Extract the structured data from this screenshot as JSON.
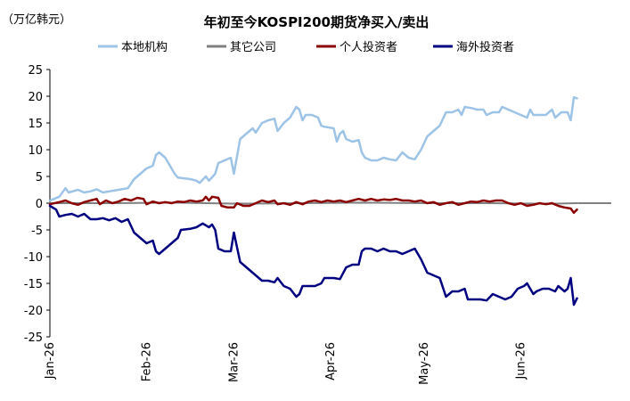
{
  "chart_data": {
    "type": "line",
    "title": "年初至今KOSPI200期货净买入/卖出",
    "unit_label": "（万亿韩元）",
    "ylim": [
      -25,
      25
    ],
    "yticks": [
      "25",
      "20",
      "15",
      "10",
      "5",
      "0",
      "-5",
      "-10",
      "-15",
      "-20",
      "-25"
    ],
    "xlim": [
      0,
      180
    ],
    "xticks": [
      {
        "label": "Jan-26",
        "x": 0
      },
      {
        "label": "Feb-26",
        "x": 31
      },
      {
        "label": "Mar-26",
        "x": 59
      },
      {
        "label": "Apr-26",
        "x": 90
      },
      {
        "label": "May-26",
        "x": 120
      },
      {
        "label": "Jun-26",
        "x": 151
      }
    ],
    "legend_position": "top",
    "grid": false,
    "series": [
      {
        "name": "本地机构",
        "color": "#9dc3e6",
        "points": [
          [
            0,
            0.5
          ],
          [
            3,
            1.2
          ],
          [
            5,
            2.8
          ],
          [
            6,
            2.0
          ],
          [
            9,
            2.5
          ],
          [
            11,
            2.0
          ],
          [
            13,
            2.2
          ],
          [
            15,
            2.6
          ],
          [
            17,
            2.0
          ],
          [
            20,
            2.3
          ],
          [
            22,
            2.5
          ],
          [
            25,
            2.8
          ],
          [
            27,
            4.5
          ],
          [
            29,
            5.5
          ],
          [
            31,
            6.5
          ],
          [
            33,
            7.0
          ],
          [
            34,
            9.0
          ],
          [
            35,
            9.5
          ],
          [
            37,
            8.5
          ],
          [
            39,
            6.5
          ],
          [
            40,
            5.5
          ],
          [
            41,
            4.8
          ],
          [
            45,
            4.5
          ],
          [
            47,
            4.2
          ],
          [
            48,
            3.8
          ],
          [
            50,
            5.0
          ],
          [
            51,
            4.2
          ],
          [
            53,
            5.5
          ],
          [
            54,
            7.5
          ],
          [
            56,
            8.0
          ],
          [
            58,
            8.5
          ],
          [
            59,
            5.5
          ],
          [
            61,
            12.0
          ],
          [
            63,
            13.0
          ],
          [
            65,
            14.0
          ],
          [
            66,
            13.2
          ],
          [
            68,
            15.0
          ],
          [
            70,
            15.5
          ],
          [
            72,
            15.8
          ],
          [
            73,
            13.5
          ],
          [
            75,
            15.0
          ],
          [
            77,
            16.0
          ],
          [
            79,
            18.0
          ],
          [
            80,
            17.5
          ],
          [
            81,
            15.5
          ],
          [
            82,
            16.5
          ],
          [
            84,
            16.5
          ],
          [
            86,
            16.0
          ],
          [
            87,
            14.5
          ],
          [
            88,
            14.3
          ],
          [
            91,
            14.0
          ],
          [
            92,
            11.5
          ],
          [
            93,
            13.0
          ],
          [
            94,
            13.5
          ],
          [
            95,
            12.0
          ],
          [
            97,
            11.5
          ],
          [
            99,
            11.8
          ],
          [
            100,
            9.5
          ],
          [
            101,
            8.5
          ],
          [
            103,
            8.0
          ],
          [
            105,
            8.0
          ],
          [
            107,
            8.5
          ],
          [
            109,
            8.2
          ],
          [
            111,
            8.0
          ],
          [
            113,
            9.5
          ],
          [
            115,
            8.5
          ],
          [
            117,
            8.2
          ],
          [
            119,
            10.0
          ],
          [
            121,
            12.5
          ],
          [
            123,
            13.5
          ],
          [
            125,
            14.5
          ],
          [
            127,
            17.0
          ],
          [
            129,
            17.0
          ],
          [
            131,
            17.5
          ],
          [
            132,
            16.5
          ],
          [
            133,
            18.0
          ],
          [
            135,
            17.8
          ],
          [
            137,
            17.5
          ],
          [
            139,
            17.5
          ],
          [
            140,
            16.5
          ],
          [
            142,
            17.0
          ],
          [
            144,
            17.0
          ],
          [
            145,
            18.0
          ],
          [
            147,
            17.5
          ],
          [
            149,
            17.0
          ],
          [
            151,
            16.5
          ],
          [
            153,
            16.0
          ],
          [
            154,
            17.5
          ],
          [
            155,
            16.5
          ],
          [
            157,
            16.5
          ],
          [
            159,
            16.5
          ],
          [
            161,
            17.5
          ],
          [
            162,
            16.0
          ],
          [
            164,
            17.0
          ],
          [
            166,
            17.0
          ],
          [
            167,
            15.5
          ],
          [
            168,
            19.8
          ],
          [
            169,
            19.6
          ]
        ]
      },
      {
        "name": "其它公司",
        "color": "#808080",
        "points": [
          [
            0,
            0.0
          ],
          [
            20,
            0.0
          ],
          [
            40,
            0.1
          ],
          [
            50,
            0.0
          ],
          [
            60,
            -0.1
          ],
          [
            80,
            0.0
          ],
          [
            100,
            0.1
          ],
          [
            120,
            0.0
          ],
          [
            140,
            0.0
          ],
          [
            160,
            -0.1
          ],
          [
            169,
            0.0
          ]
        ]
      },
      {
        "name": "个人投资者",
        "color": "#8b0000",
        "points": [
          [
            0,
            -0.2
          ],
          [
            3,
            0.2
          ],
          [
            5,
            0.5
          ],
          [
            7,
            0.0
          ],
          [
            9,
            -0.3
          ],
          [
            11,
            0.2
          ],
          [
            13,
            0.5
          ],
          [
            15,
            0.8
          ],
          [
            16,
            -0.2
          ],
          [
            18,
            0.5
          ],
          [
            20,
            0.0
          ],
          [
            22,
            0.3
          ],
          [
            24,
            0.8
          ],
          [
            26,
            0.5
          ],
          [
            28,
            1.0
          ],
          [
            30,
            0.8
          ],
          [
            31,
            -0.2
          ],
          [
            33,
            0.3
          ],
          [
            35,
            0.0
          ],
          [
            37,
            0.2
          ],
          [
            39,
            0.0
          ],
          [
            41,
            0.3
          ],
          [
            43,
            0.2
          ],
          [
            45,
            0.5
          ],
          [
            47,
            0.3
          ],
          [
            49,
            0.5
          ],
          [
            50,
            1.2
          ],
          [
            51,
            0.5
          ],
          [
            52,
            1.2
          ],
          [
            54,
            1.0
          ],
          [
            55,
            -0.5
          ],
          [
            57,
            -0.8
          ],
          [
            59,
            -0.8
          ],
          [
            60,
            0.0
          ],
          [
            62,
            -0.5
          ],
          [
            64,
            -0.5
          ],
          [
            66,
            0.0
          ],
          [
            68,
            0.5
          ],
          [
            70,
            0.2
          ],
          [
            72,
            0.5
          ],
          [
            73,
            -0.2
          ],
          [
            75,
            0.0
          ],
          [
            77,
            -0.3
          ],
          [
            79,
            0.2
          ],
          [
            81,
            -0.2
          ],
          [
            83,
            0.3
          ],
          [
            85,
            0.5
          ],
          [
            87,
            0.2
          ],
          [
            89,
            0.5
          ],
          [
            91,
            0.3
          ],
          [
            93,
            0.5
          ],
          [
            95,
            0.2
          ],
          [
            97,
            0.5
          ],
          [
            99,
            0.8
          ],
          [
            101,
            0.5
          ],
          [
            103,
            0.8
          ],
          [
            105,
            0.5
          ],
          [
            107,
            0.7
          ],
          [
            109,
            0.6
          ],
          [
            111,
            0.8
          ],
          [
            113,
            0.5
          ],
          [
            115,
            0.5
          ],
          [
            117,
            0.3
          ],
          [
            119,
            0.5
          ],
          [
            121,
            0.0
          ],
          [
            123,
            0.2
          ],
          [
            125,
            -0.3
          ],
          [
            127,
            0.0
          ],
          [
            129,
            0.2
          ],
          [
            131,
            -0.3
          ],
          [
            133,
            0.0
          ],
          [
            135,
            0.3
          ],
          [
            137,
            0.2
          ],
          [
            139,
            0.5
          ],
          [
            141,
            0.3
          ],
          [
            143,
            0.5
          ],
          [
            145,
            0.5
          ],
          [
            147,
            0.0
          ],
          [
            149,
            -0.3
          ],
          [
            151,
            0.0
          ],
          [
            153,
            -0.5
          ],
          [
            155,
            -0.3
          ],
          [
            157,
            0.0
          ],
          [
            159,
            -0.2
          ],
          [
            161,
            0.0
          ],
          [
            163,
            -0.5
          ],
          [
            165,
            -0.8
          ],
          [
            167,
            -1.0
          ],
          [
            168,
            -1.8
          ],
          [
            169,
            -1.2
          ]
        ]
      },
      {
        "name": "海外投资者",
        "color": "#000080",
        "points": [
          [
            0,
            -0.5
          ],
          [
            2,
            -1.2
          ],
          [
            3,
            -2.5
          ],
          [
            5,
            -2.2
          ],
          [
            7,
            -2.0
          ],
          [
            9,
            -2.5
          ],
          [
            11,
            -2.0
          ],
          [
            13,
            -3.0
          ],
          [
            15,
            -3.0
          ],
          [
            17,
            -2.8
          ],
          [
            19,
            -3.2
          ],
          [
            21,
            -2.8
          ],
          [
            23,
            -3.5
          ],
          [
            25,
            -3.0
          ],
          [
            27,
            -5.5
          ],
          [
            29,
            -6.5
          ],
          [
            31,
            -7.5
          ],
          [
            33,
            -7.0
          ],
          [
            34,
            -9.0
          ],
          [
            35,
            -9.5
          ],
          [
            37,
            -8.5
          ],
          [
            39,
            -7.5
          ],
          [
            41,
            -6.5
          ],
          [
            42,
            -5.0
          ],
          [
            45,
            -4.8
          ],
          [
            47,
            -4.5
          ],
          [
            49,
            -3.8
          ],
          [
            51,
            -4.5
          ],
          [
            52,
            -4.0
          ],
          [
            53,
            -5.0
          ],
          [
            54,
            -8.5
          ],
          [
            56,
            -9.0
          ],
          [
            58,
            -9.0
          ],
          [
            59,
            -5.5
          ],
          [
            61,
            -11.0
          ],
          [
            63,
            -12.0
          ],
          [
            65,
            -13.0
          ],
          [
            66,
            -13.5
          ],
          [
            68,
            -14.5
          ],
          [
            70,
            -14.5
          ],
          [
            72,
            -14.8
          ],
          [
            73,
            -14.0
          ],
          [
            75,
            -15.5
          ],
          [
            77,
            -16.0
          ],
          [
            79,
            -17.5
          ],
          [
            80,
            -17.0
          ],
          [
            81,
            -15.5
          ],
          [
            83,
            -15.5
          ],
          [
            85,
            -15.5
          ],
          [
            87,
            -15.0
          ],
          [
            88,
            -14.0
          ],
          [
            91,
            -14.0
          ],
          [
            93,
            -14.2
          ],
          [
            95,
            -12.0
          ],
          [
            97,
            -11.5
          ],
          [
            99,
            -11.5
          ],
          [
            100,
            -9.0
          ],
          [
            101,
            -8.5
          ],
          [
            103,
            -8.5
          ],
          [
            105,
            -9.0
          ],
          [
            107,
            -8.5
          ],
          [
            109,
            -9.0
          ],
          [
            111,
            -9.0
          ],
          [
            113,
            -9.5
          ],
          [
            115,
            -9.0
          ],
          [
            117,
            -8.5
          ],
          [
            119,
            -10.5
          ],
          [
            121,
            -13.0
          ],
          [
            123,
            -13.5
          ],
          [
            125,
            -14.0
          ],
          [
            127,
            -17.5
          ],
          [
            129,
            -16.5
          ],
          [
            131,
            -16.5
          ],
          [
            133,
            -16.0
          ],
          [
            134,
            -18.0
          ],
          [
            136,
            -18.0
          ],
          [
            138,
            -18.0
          ],
          [
            140,
            -18.2
          ],
          [
            142,
            -17.0
          ],
          [
            144,
            -17.5
          ],
          [
            146,
            -18.0
          ],
          [
            148,
            -17.5
          ],
          [
            150,
            -16.0
          ],
          [
            152,
            -15.5
          ],
          [
            153,
            -15.0
          ],
          [
            155,
            -17.0
          ],
          [
            156,
            -16.5
          ],
          [
            158,
            -16.0
          ],
          [
            160,
            -16.0
          ],
          [
            162,
            -16.5
          ],
          [
            163,
            -15.5
          ],
          [
            165,
            -16.5
          ],
          [
            166,
            -16.0
          ],
          [
            167,
            -14.0
          ],
          [
            168,
            -19.0
          ],
          [
            169,
            -17.8
          ]
        ]
      }
    ]
  }
}
